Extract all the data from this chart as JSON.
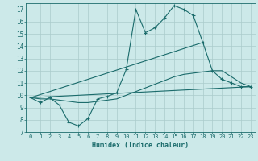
{
  "xlabel": "Humidex (Indice chaleur)",
  "bg_color": "#cce9e9",
  "grid_color": "#aacccc",
  "line_color": "#1a6b6b",
  "xlim": [
    -0.5,
    23.5
  ],
  "ylim": [
    7,
    17.5
  ],
  "xticks": [
    0,
    1,
    2,
    3,
    4,
    5,
    6,
    7,
    8,
    9,
    10,
    11,
    12,
    13,
    14,
    15,
    16,
    17,
    18,
    19,
    20,
    21,
    22,
    23
  ],
  "yticks": [
    7,
    8,
    9,
    10,
    11,
    12,
    13,
    14,
    15,
    16,
    17
  ],
  "line1_x": [
    0,
    1,
    2,
    3,
    4,
    5,
    6,
    7,
    8,
    9,
    10,
    11,
    12,
    13,
    14,
    15,
    16,
    17,
    18,
    19,
    20,
    21,
    22,
    23
  ],
  "line1_y": [
    9.8,
    9.4,
    9.8,
    9.2,
    7.8,
    7.5,
    8.1,
    9.7,
    9.9,
    10.2,
    12.1,
    17.0,
    15.1,
    15.5,
    16.3,
    17.3,
    17.0,
    16.5,
    14.3,
    12.0,
    11.3,
    11.0,
    10.7,
    10.7
  ],
  "line2_x": [
    0,
    23
  ],
  "line2_y": [
    9.8,
    10.7
  ],
  "line3_x": [
    0,
    18
  ],
  "line3_y": [
    9.8,
    14.3
  ],
  "line4_x": [
    0,
    1,
    2,
    3,
    4,
    5,
    6,
    7,
    8,
    9,
    10,
    11,
    12,
    13,
    14,
    15,
    16,
    17,
    18,
    19,
    20,
    21,
    22,
    23
  ],
  "line4_y": [
    9.8,
    9.7,
    9.7,
    9.6,
    9.5,
    9.4,
    9.4,
    9.5,
    9.6,
    9.7,
    10.0,
    10.3,
    10.6,
    10.9,
    11.2,
    11.5,
    11.7,
    11.8,
    11.9,
    12.0,
    12.0,
    11.5,
    11.0,
    10.7
  ]
}
